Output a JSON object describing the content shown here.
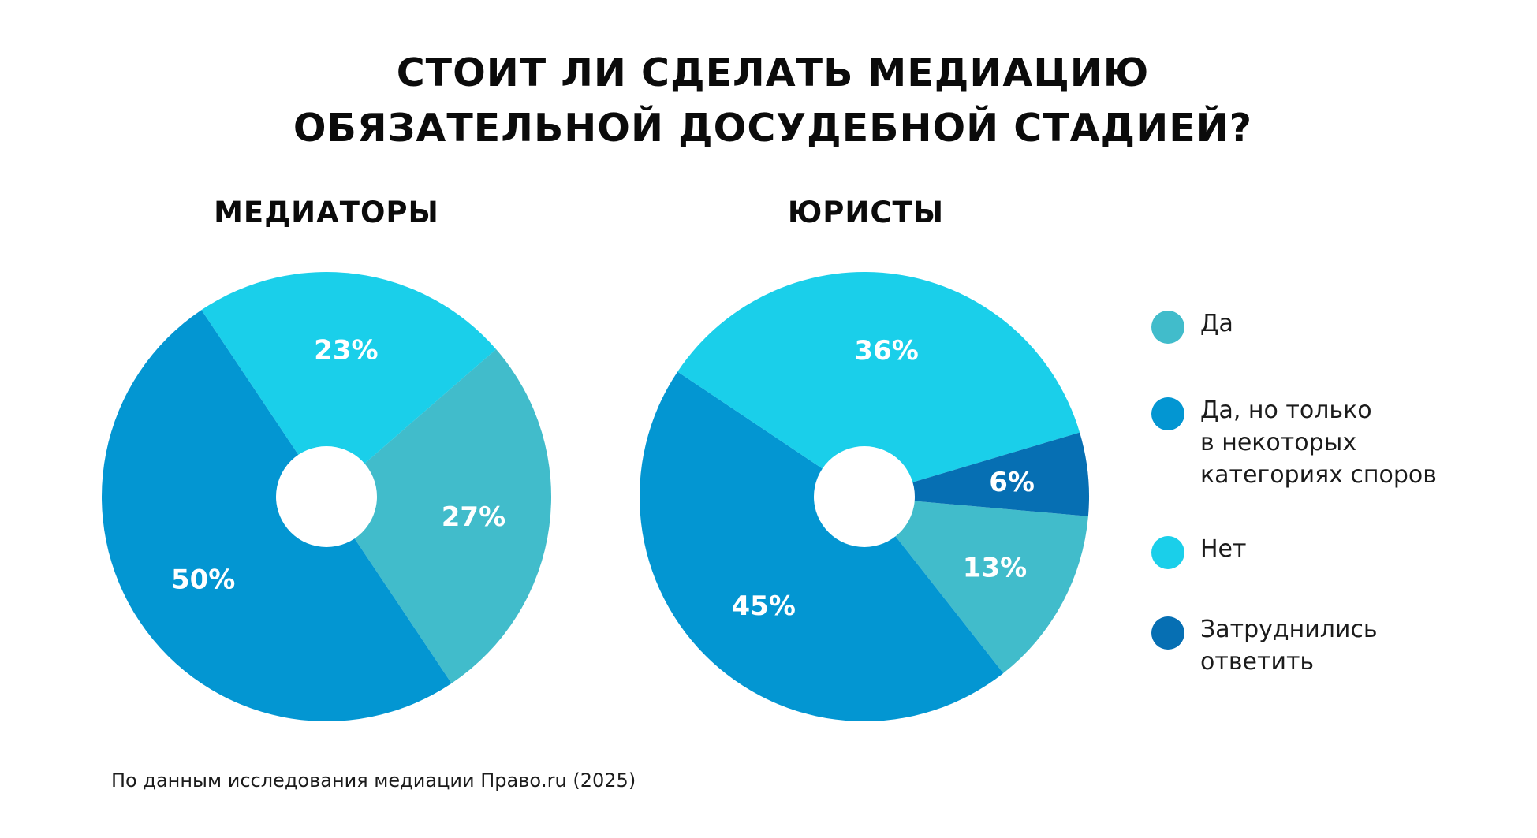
{
  "title": {
    "line1": "СТОИТ ЛИ СДЕЛАТЬ МЕДИАЦИЮ",
    "line2": "ОБЯЗАТЕЛЬНОЙ ДОСУДЕБНОЙ СТАДИЕЙ?"
  },
  "source": "По данным исследования медиации Право.ru (2025)",
  "colors": {
    "yes": "#41BCCB",
    "yes_partial": "#0396D2",
    "no": "#1ACFEA",
    "hard_to_say": "#066FB3"
  },
  "legend": [
    {
      "key": "yes",
      "label": "Да"
    },
    {
      "key": "yes_partial",
      "label": "Да, но только\nв некоторых\nкатегориях споров"
    },
    {
      "key": "no",
      "label": "Нет"
    },
    {
      "key": "hard_to_say",
      "label": "Затруднились\nответить"
    }
  ],
  "chart_data": [
    {
      "type": "pie",
      "title": "МЕДИАТОРЫ",
      "categories": [
        "Да",
        "Да, но только в некоторых категориях споров",
        "Нет"
      ],
      "keys": [
        "yes",
        "yes_partial",
        "no"
      ],
      "values": [
        27,
        50,
        23
      ],
      "labels": [
        "27%",
        "50%",
        "23%"
      ]
    },
    {
      "type": "pie",
      "title": "ЮРИСТЫ",
      "categories": [
        "Да",
        "Да, но только в некоторых категориях споров",
        "Нет",
        "Затруднились ответить"
      ],
      "keys": [
        "yes",
        "yes_partial",
        "no",
        "hard_to_say"
      ],
      "values": [
        13,
        45,
        36,
        6
      ],
      "labels": [
        "13%",
        "45%",
        "36%",
        "6%"
      ]
    }
  ]
}
